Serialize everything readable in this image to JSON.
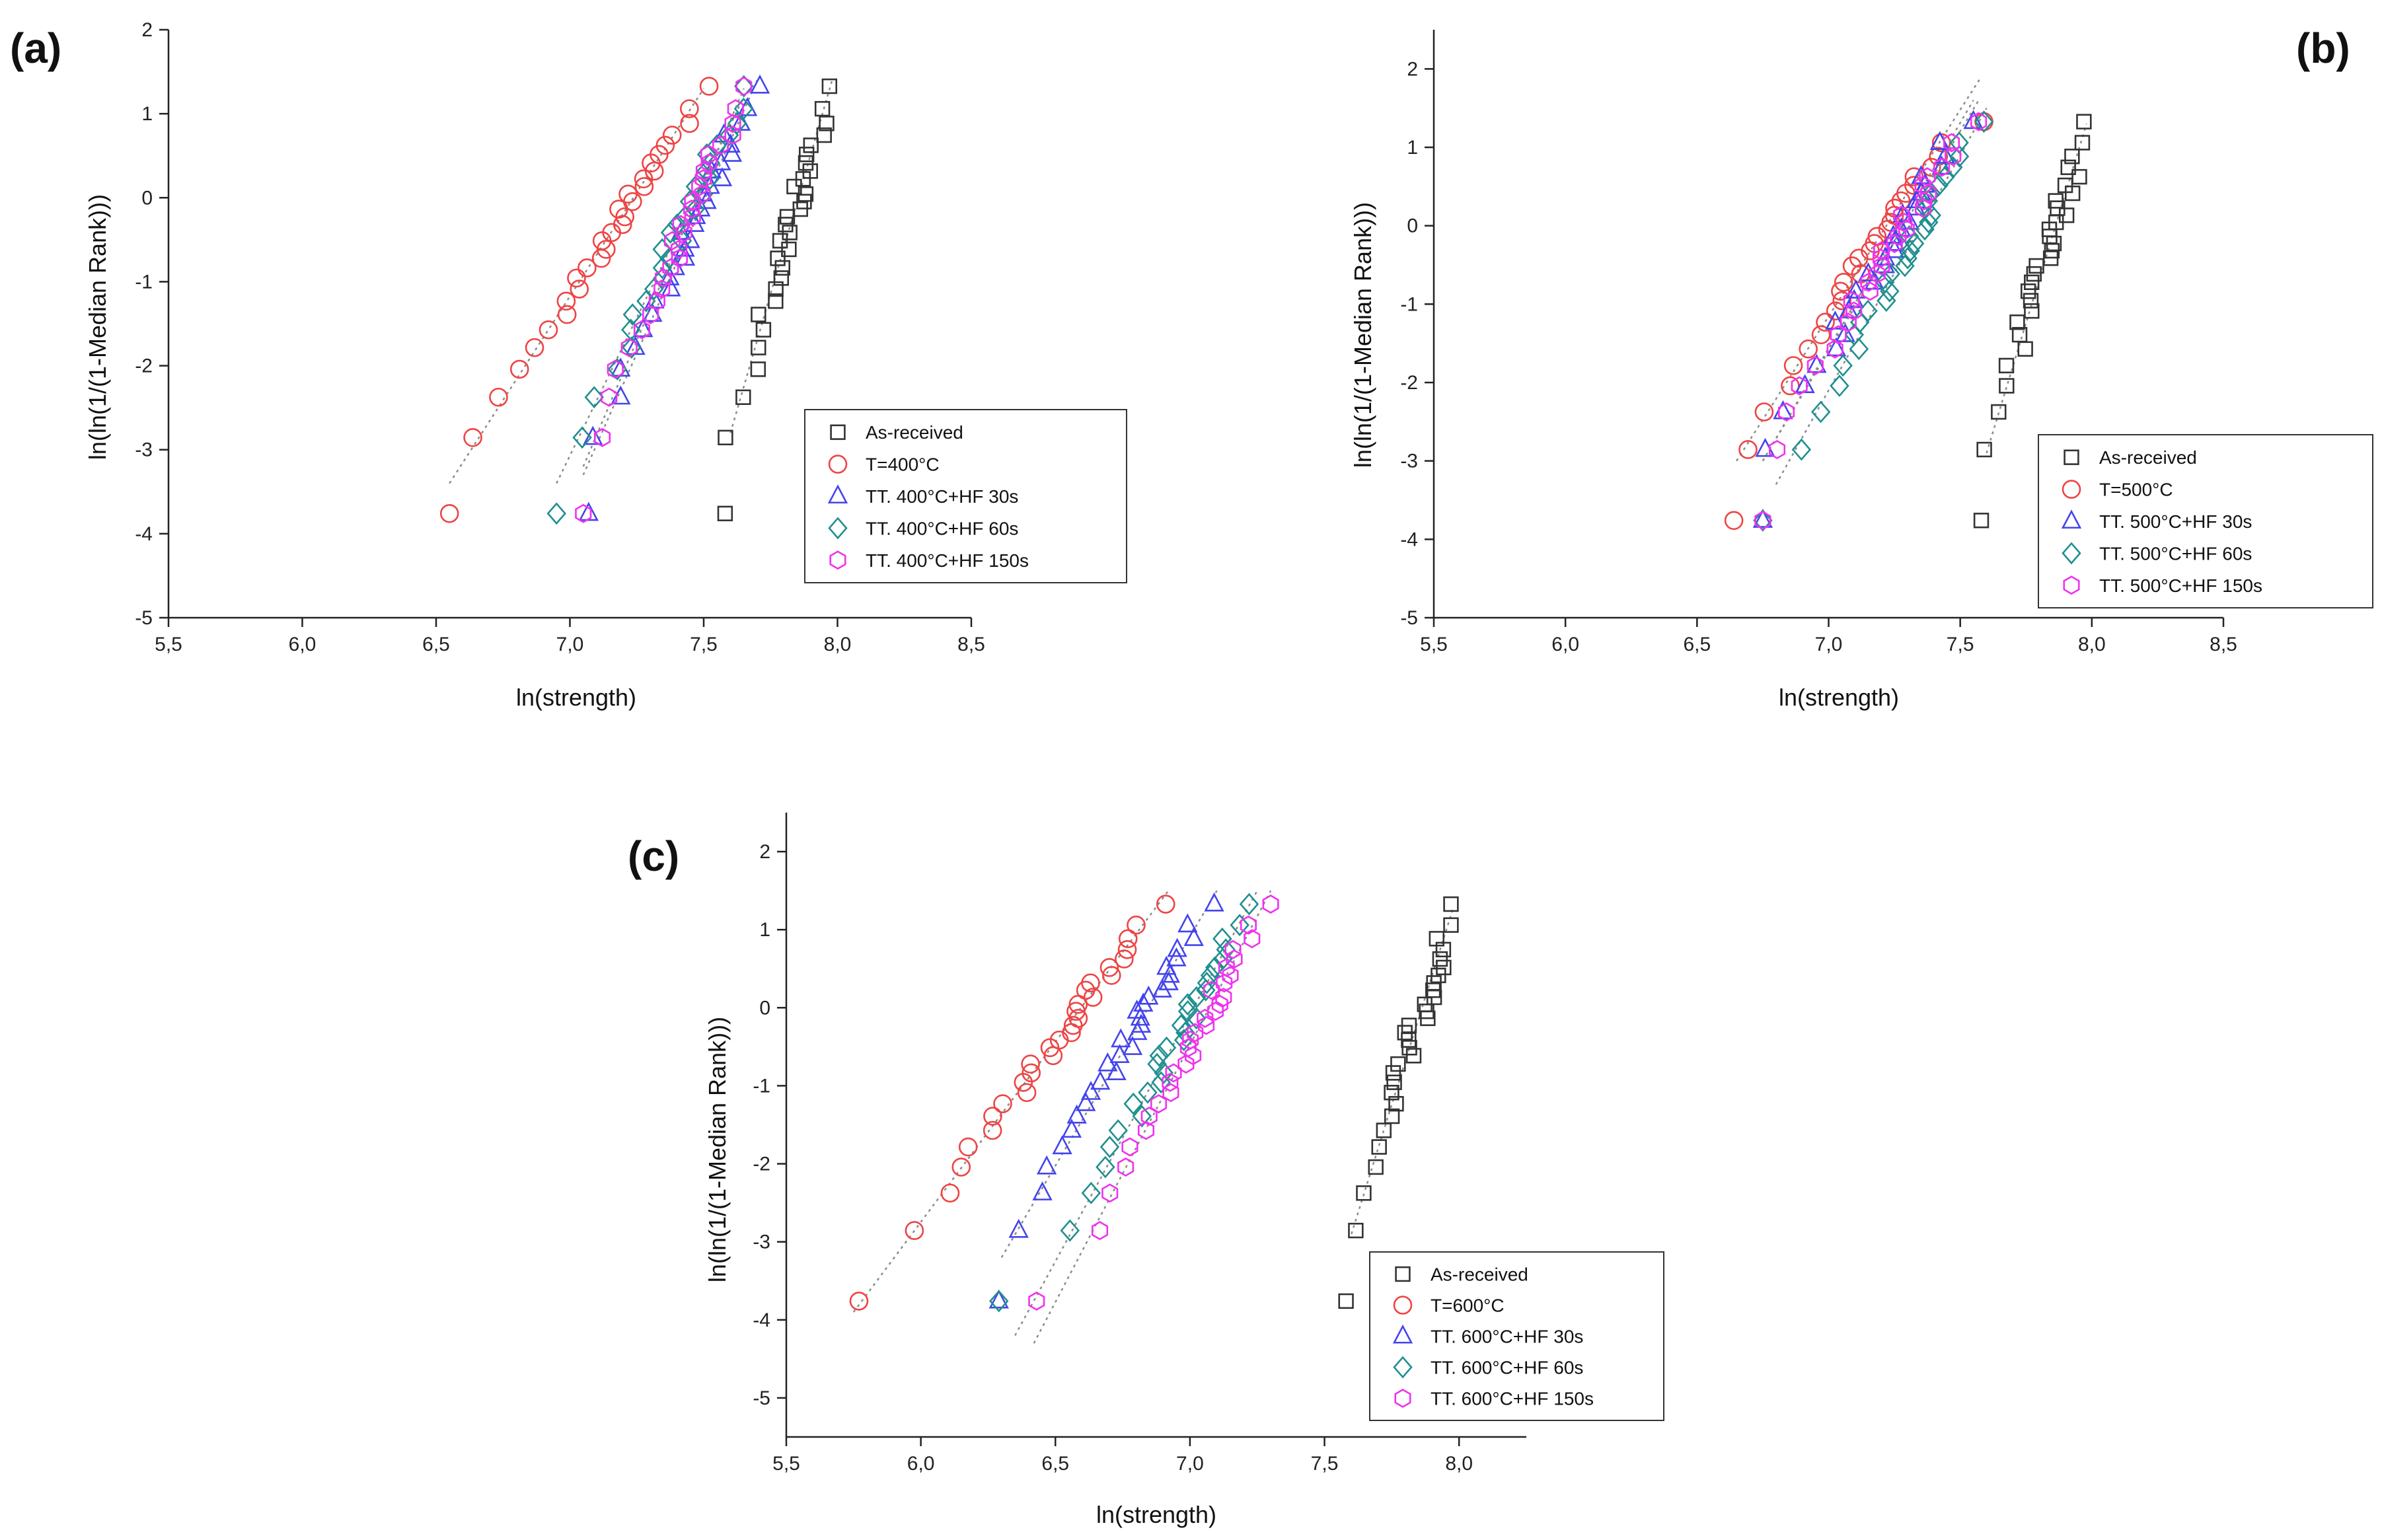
{
  "chart_data": [
    {
      "panel": "(a)",
      "type": "scatter",
      "xlabel": "ln(strength)",
      "ylabel": "ln(ln(1/(1-Median Rank)))",
      "xlim": [
        5.5,
        8.5
      ],
      "ylim": [
        -5,
        2
      ],
      "xticks": [
        "5,5",
        "6,0",
        "6,5",
        "7,0",
        "7,5",
        "8,0",
        "8,5"
      ],
      "yticks": [
        "-5",
        "-4",
        "-3",
        "-2",
        "-1",
        "0",
        "1",
        "2"
      ],
      "legend_position": "lower-right",
      "series": [
        {
          "name": "As-received",
          "color": "#333333",
          "marker": "square",
          "xmin": 7.58,
          "xmax": 7.97,
          "fit": [
            [
              7.6,
              -2.8
            ],
            [
              7.98,
              1.4
            ]
          ]
        },
        {
          "name": "T=400°C",
          "color": "#ee4444",
          "marker": "circle",
          "xmin": 6.55,
          "xmax": 7.52,
          "fit": [
            [
              6.55,
              -3.4
            ],
            [
              7.5,
              1.3
            ]
          ]
        },
        {
          "name": "TT. 400°C+HF 30s",
          "color": "#4444ee",
          "marker": "triangle",
          "xmin": 7.07,
          "xmax": 7.71,
          "fit": [
            [
              7.05,
              -3.3
            ],
            [
              7.7,
              1.4
            ]
          ]
        },
        {
          "name": "TT. 400°C+HF 60s",
          "color": "#1f8f8f",
          "marker": "diamond",
          "xmin": 6.95,
          "xmax": 7.65,
          "fit": [
            [
              6.95,
              -3.4
            ],
            [
              7.65,
              1.2
            ]
          ]
        },
        {
          "name": "TT. 400°C+HF 150s",
          "color": "#ee33ee",
          "marker": "hexagon",
          "xmin": 7.05,
          "xmax": 7.65,
          "fit": [
            [
              7.05,
              -3.2
            ],
            [
              7.65,
              1.3
            ]
          ]
        }
      ]
    },
    {
      "panel": "(b)",
      "type": "scatter",
      "xlabel": "ln(strength)",
      "ylabel": "ln(ln(1/(1-Median Rank)))",
      "xlim": [
        5.5,
        8.5
      ],
      "ylim": [
        -5,
        2.5
      ],
      "xticks": [
        "5,5",
        "6,0",
        "6,5",
        "7,0",
        "7,5",
        "8,0",
        "8,5"
      ],
      "yticks": [
        "-5",
        "-4",
        "-3",
        "-2",
        "-1",
        "0",
        "1",
        "2"
      ],
      "legend_position": "lower-right",
      "series": [
        {
          "name": "As-received",
          "color": "#333333",
          "marker": "square",
          "xmin": 7.58,
          "xmax": 7.97,
          "fit": [
            [
              7.6,
              -2.9
            ],
            [
              7.98,
              1.3
            ]
          ]
        },
        {
          "name": "T=500°C",
          "color": "#ee4444",
          "marker": "circle",
          "xmin": 6.64,
          "xmax": 7.59,
          "fit": [
            [
              6.65,
              -3.0
            ],
            [
              7.58,
              1.9
            ]
          ]
        },
        {
          "name": "TT. 500°C+HF 30s",
          "color": "#4444ee",
          "marker": "triangle",
          "xmin": 6.75,
          "xmax": 7.55,
          "fit": [
            [
              6.75,
              -3.0
            ],
            [
              7.55,
              1.6
            ]
          ]
        },
        {
          "name": "TT. 500°C+HF 60s",
          "color": "#1f8f8f",
          "marker": "diamond",
          "xmin": 6.75,
          "xmax": 7.59,
          "fit": [
            [
              6.8,
              -3.3
            ],
            [
              7.6,
              1.5
            ]
          ]
        },
        {
          "name": "TT. 500°C+HF 150s",
          "color": "#ee33ee",
          "marker": "hexagon",
          "xmin": 6.75,
          "xmax": 7.57,
          "fit": [
            [
              6.75,
              -3.0
            ],
            [
              7.57,
              1.6
            ]
          ]
        }
      ]
    },
    {
      "panel": "(c)",
      "type": "scatter",
      "xlabel": "ln(strength)",
      "ylabel": "ln(ln(1/(1-Median Rank)))",
      "xlim": [
        5.5,
        8.25
      ],
      "ylim": [
        -5.5,
        2.5
      ],
      "xticks": [
        "5,5",
        "6,0",
        "6,5",
        "7,0",
        "7,5",
        "8,0"
      ],
      "yticks": [
        "-5",
        "-4",
        "-3",
        "-2",
        "-1",
        "0",
        "1",
        "2"
      ],
      "legend_position": "lower-right",
      "series": [
        {
          "name": "As-received",
          "color": "#333333",
          "marker": "square",
          "xmin": 7.58,
          "xmax": 7.97,
          "fit": [
            [
              7.6,
              -2.9
            ],
            [
              7.98,
              1.3
            ]
          ]
        },
        {
          "name": "T=600°C",
          "color": "#ee4444",
          "marker": "circle",
          "xmin": 5.77,
          "xmax": 6.91,
          "fit": [
            [
              5.75,
              -3.9
            ],
            [
              6.92,
              1.5
            ]
          ]
        },
        {
          "name": "TT. 600°C+HF 30s",
          "color": "#4444ee",
          "marker": "triangle",
          "xmin": 6.29,
          "xmax": 7.09,
          "fit": [
            [
              6.3,
              -3.2
            ],
            [
              7.1,
              1.5
            ]
          ]
        },
        {
          "name": "TT. 600°C+HF 60s",
          "color": "#1f8f8f",
          "marker": "diamond",
          "xmin": 6.29,
          "xmax": 7.22,
          "fit": [
            [
              6.35,
              -4.2
            ],
            [
              7.25,
              1.5
            ]
          ]
        },
        {
          "name": "TT. 600°C+HF 150s",
          "color": "#ee33ee",
          "marker": "hexagon",
          "xmin": 6.43,
          "xmax": 7.3,
          "fit": [
            [
              6.42,
              -4.3
            ],
            [
              7.3,
              1.5
            ]
          ]
        }
      ]
    }
  ]
}
